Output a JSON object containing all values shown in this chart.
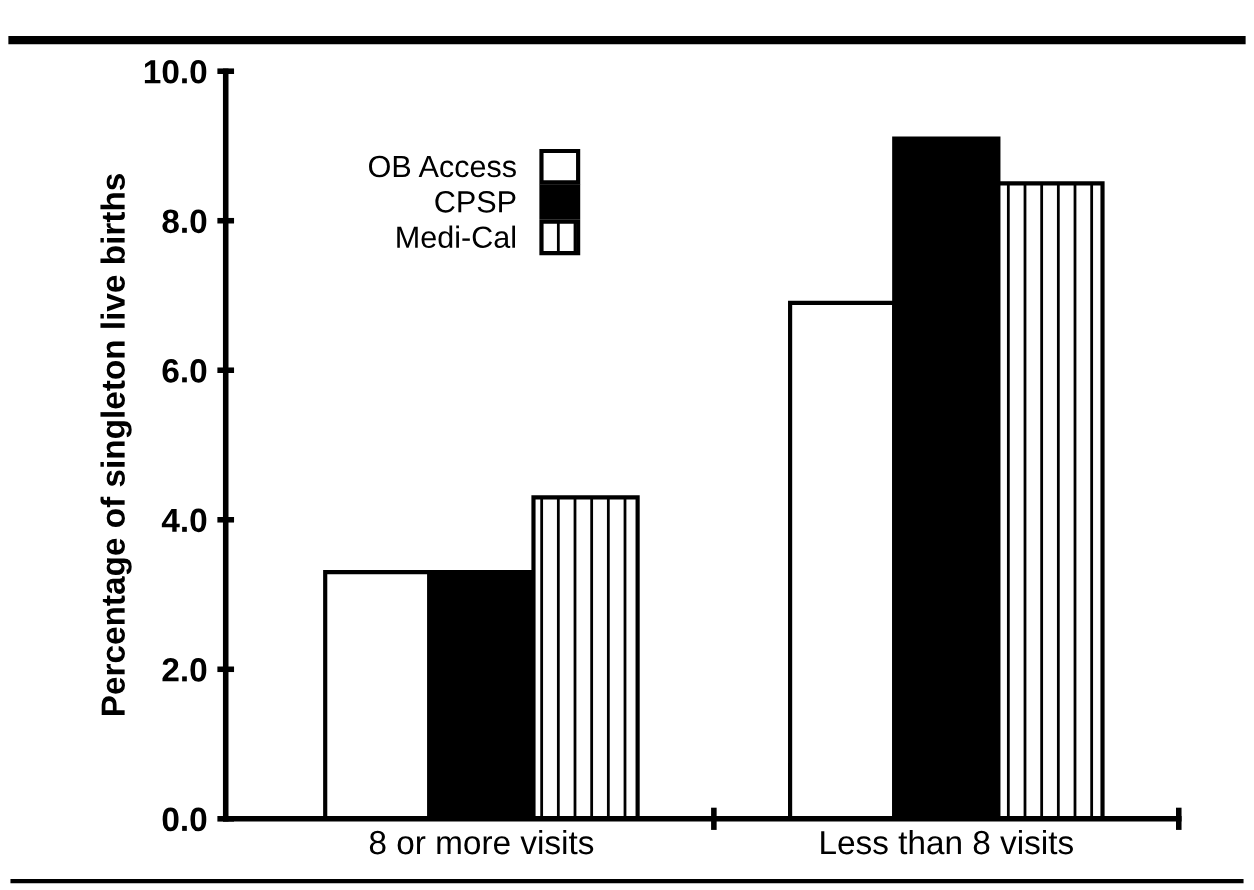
{
  "chart_data": {
    "type": "bar",
    "ylabel": "Percentage of singleton live births",
    "categories": [
      "8 or more visits",
      "Less than 8 visits"
    ],
    "series": [
      {
        "name": "OB Access",
        "color": "#ffffff",
        "values": [
          3.3,
          6.9
        ]
      },
      {
        "name": "CPSP",
        "color": "#000000",
        "values": [
          3.3,
          9.1
        ]
      },
      {
        "name": "Medi-Cal",
        "color": "#000000",
        "values": [
          4.3,
          8.5
        ]
      }
    ],
    "ylim": [
      0,
      10
    ],
    "yticks": [
      {
        "value": 0,
        "label": "0.0"
      },
      {
        "value": 2,
        "label": "2.0"
      },
      {
        "value": 4,
        "label": "4.0"
      },
      {
        "value": 6,
        "label": "6.0"
      },
      {
        "value": 8,
        "label": "8.0"
      },
      {
        "value": 10,
        "label": "10.0"
      }
    ],
    "grid": false,
    "legend": "top left"
  }
}
